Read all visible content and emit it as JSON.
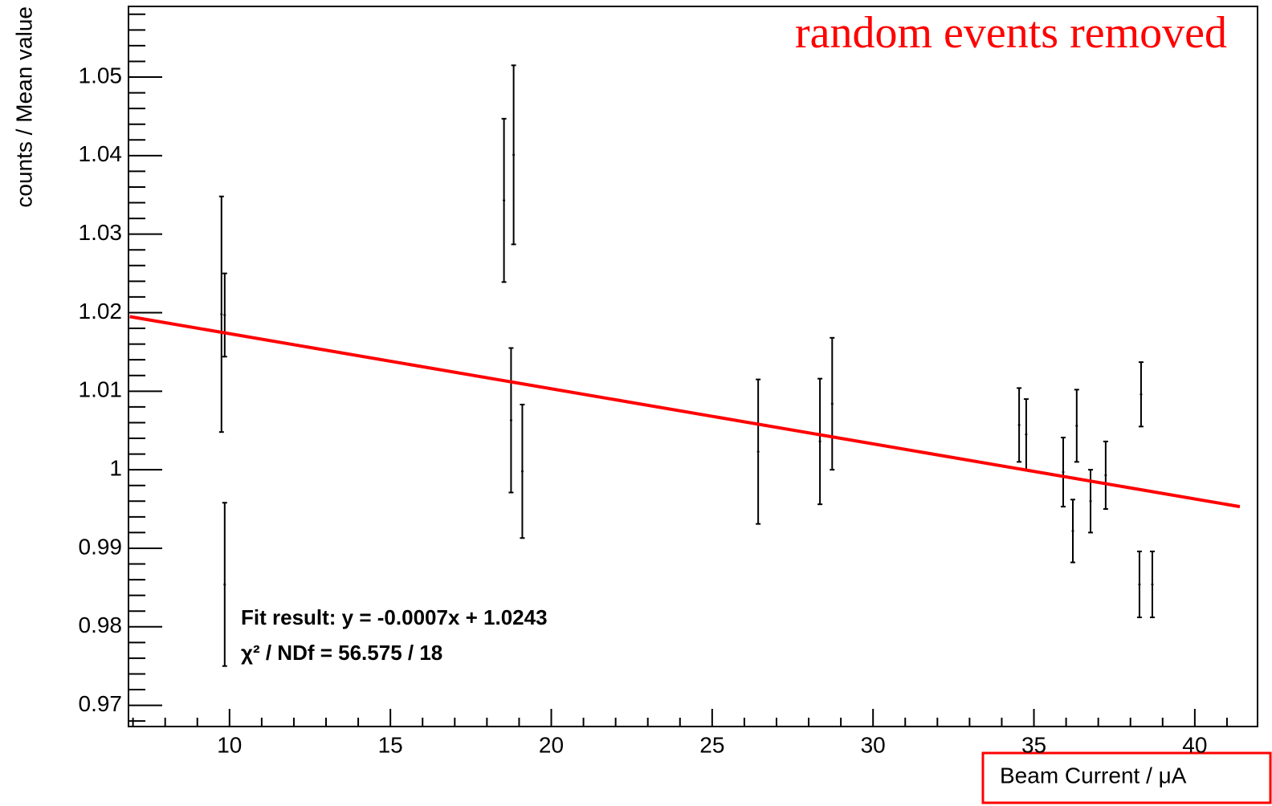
{
  "chart_data": {
    "type": "errorbar",
    "annotation": "random events removed",
    "annotation_color": "#ff0000",
    "fit_text": [
      "Fit result: y = -0.0007x + 1.0243",
      "χ² / NDf = 56.575 / 18"
    ],
    "xlabel": "Beam Current / μA",
    "xlabel_box_color": "#ff0000",
    "ylabel": "counts / Mean value",
    "xlim": [
      6.86,
      41.95
    ],
    "ylim": [
      0.9673,
      1.059
    ],
    "xticks": [
      10,
      15,
      20,
      25,
      30,
      35,
      40
    ],
    "yticks": [
      0.97,
      0.98,
      0.99,
      1,
      1.01,
      1.02,
      1.03,
      1.04,
      1.05
    ],
    "xminorticks": [
      7,
      8,
      9,
      11,
      12,
      13,
      14,
      16,
      17,
      18,
      19,
      21,
      22,
      23,
      24,
      26,
      27,
      28,
      29,
      31,
      32,
      33,
      34,
      36,
      37,
      38,
      39,
      41
    ],
    "yminorticks": [
      0.968,
      0.972,
      0.974,
      0.976,
      0.978,
      0.982,
      0.984,
      0.986,
      0.988,
      0.992,
      0.994,
      0.996,
      0.998,
      1.002,
      1.004,
      1.006,
      1.008,
      1.012,
      1.014,
      1.016,
      1.018,
      1.022,
      1.024,
      1.026,
      1.028,
      1.032,
      1.034,
      1.036,
      1.038,
      1.042,
      1.044,
      1.046,
      1.048,
      1.052,
      1.054,
      1.056,
      1.058
    ],
    "series": [
      {
        "color": "#000000",
        "x": [
          9.75,
          9.85,
          9.85,
          18.53,
          18.83,
          18.75,
          19.1,
          26.43,
          28.35,
          28.73,
          34.54,
          34.76,
          35.91,
          36.21,
          36.33,
          36.76,
          37.23,
          38.33,
          38.28,
          38.68
        ],
        "values": [
          1.0198,
          1.0197,
          0.9854,
          1.0343,
          1.0401,
          1.0063,
          0.9998,
          1.0023,
          1.0036,
          1.0084,
          1.0057,
          1.0045,
          0.9997,
          0.9922,
          1.0056,
          0.996,
          0.9993,
          1.0096,
          0.9854,
          0.9854
        ],
        "errors": [
          0.015,
          0.0053,
          0.0104,
          0.0104,
          0.0114,
          0.0092,
          0.0085,
          0.0092,
          0.008,
          0.0084,
          0.0047,
          0.0045,
          0.0044,
          0.004,
          0.0046,
          0.004,
          0.0043,
          0.0041,
          0.0042,
          0.0042
        ]
      }
    ],
    "fit": {
      "color": "#ff0000",
      "x": [
        6.9,
        41.4
      ],
      "values": [
        1.0195,
        0.9953
      ]
    }
  }
}
